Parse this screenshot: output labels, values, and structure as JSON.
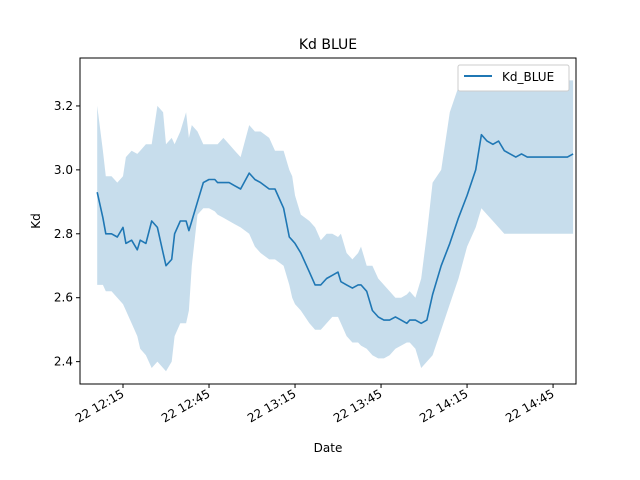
{
  "chart_data": {
    "type": "line",
    "title": "Kd BLUE",
    "xlabel": "Date",
    "ylabel": "Kd",
    "ylim": [
      2.33,
      3.35
    ],
    "xlim": [
      "2022-01-22 12:00",
      "2022-01-22 14:53"
    ],
    "x_ticks": [
      {
        "x": "2022-01-22 12:15",
        "label": "22 12:15"
      },
      {
        "x": "2022-01-22 12:45",
        "label": "22 12:45"
      },
      {
        "x": "2022-01-22 13:15",
        "label": "22 13:15"
      },
      {
        "x": "2022-01-22 13:45",
        "label": "22 13:45"
      },
      {
        "x": "2022-01-22 14:15",
        "label": "22 14:15"
      },
      {
        "x": "2022-01-22 14:45",
        "label": "22 14:45"
      }
    ],
    "y_ticks": [
      {
        "y": 2.4,
        "label": "2.4"
      },
      {
        "y": 2.6,
        "label": "2.6"
      },
      {
        "y": 2.8,
        "label": "2.8"
      },
      {
        "y": 3.0,
        "label": "3.0"
      },
      {
        "y": 3.2,
        "label": "3.2"
      }
    ],
    "legend": {
      "position": "top-right",
      "entries": [
        "Kd_BLUE"
      ]
    },
    "grid": false,
    "colors": {
      "line": "#1f77b4",
      "band": "#1f77b4"
    },
    "series": [
      {
        "name": "Kd_BLUE",
        "x": [
          "2022-01-22 12:06",
          "2022-01-22 12:08",
          "2022-01-22 12:09",
          "2022-01-22 12:11",
          "2022-01-22 12:13",
          "2022-01-22 12:15",
          "2022-01-22 12:16",
          "2022-01-22 12:18",
          "2022-01-22 12:20",
          "2022-01-22 12:21",
          "2022-01-22 12:23",
          "2022-01-22 12:25",
          "2022-01-22 12:27",
          "2022-01-22 12:29",
          "2022-01-22 12:30",
          "2022-01-22 12:32",
          "2022-01-22 12:33",
          "2022-01-22 12:35",
          "2022-01-22 12:37",
          "2022-01-22 12:38",
          "2022-01-22 12:39",
          "2022-01-22 12:41",
          "2022-01-22 12:43",
          "2022-01-22 12:45",
          "2022-01-22 12:47",
          "2022-01-22 12:48",
          "2022-01-22 12:50",
          "2022-01-22 12:52",
          "2022-01-22 12:54",
          "2022-01-22 12:56",
          "2022-01-22 12:59",
          "2022-01-22 13:01",
          "2022-01-22 13:03",
          "2022-01-22 13:06",
          "2022-01-22 13:08",
          "2022-01-22 13:11",
          "2022-01-22 13:13",
          "2022-01-22 13:14",
          "2022-01-22 13:15",
          "2022-01-22 13:17",
          "2022-01-22 13:20",
          "2022-01-22 13:22",
          "2022-01-22 13:24",
          "2022-01-22 13:26",
          "2022-01-22 13:28",
          "2022-01-22 13:30",
          "2022-01-22 13:31",
          "2022-01-22 13:33",
          "2022-01-22 13:35",
          "2022-01-22 13:37",
          "2022-01-22 13:38",
          "2022-01-22 13:40",
          "2022-01-22 13:42",
          "2022-01-22 13:44",
          "2022-01-22 13:46",
          "2022-01-22 13:48",
          "2022-01-22 13:50",
          "2022-01-22 13:52",
          "2022-01-22 13:54",
          "2022-01-22 13:55",
          "2022-01-22 13:57",
          "2022-01-22 13:59",
          "2022-01-22 14:01",
          "2022-01-22 14:03",
          "2022-01-22 14:06",
          "2022-01-22 14:09",
          "2022-01-22 14:12",
          "2022-01-22 14:15",
          "2022-01-22 14:18",
          "2022-01-22 14:20",
          "2022-01-22 14:22",
          "2022-01-22 14:24",
          "2022-01-22 14:26",
          "2022-01-22 14:28",
          "2022-01-22 14:30",
          "2022-01-22 14:32",
          "2022-01-22 14:34",
          "2022-01-22 14:36",
          "2022-01-22 14:38",
          "2022-01-22 14:40",
          "2022-01-22 14:42",
          "2022-01-22 14:43",
          "2022-01-22 14:45",
          "2022-01-22 14:46",
          "2022-01-22 14:48",
          "2022-01-22 14:50",
          "2022-01-22 14:52"
        ],
        "y": [
          2.93,
          2.85,
          2.8,
          2.8,
          2.79,
          2.82,
          2.77,
          2.78,
          2.75,
          2.78,
          2.77,
          2.84,
          2.82,
          2.74,
          2.7,
          2.72,
          2.8,
          2.84,
          2.84,
          2.81,
          2.84,
          2.9,
          2.96,
          2.97,
          2.97,
          2.96,
          2.96,
          2.96,
          2.95,
          2.94,
          2.99,
          2.97,
          2.96,
          2.94,
          2.94,
          2.88,
          2.79,
          2.78,
          2.77,
          2.74,
          2.68,
          2.64,
          2.64,
          2.66,
          2.67,
          2.68,
          2.65,
          2.64,
          2.63,
          2.64,
          2.64,
          2.62,
          2.56,
          2.54,
          2.53,
          2.53,
          2.54,
          2.53,
          2.52,
          2.53,
          2.53,
          2.52,
          2.53,
          2.61,
          2.7,
          2.77,
          2.85,
          2.92,
          3.0,
          3.11,
          3.09,
          3.08,
          3.09,
          3.06,
          3.05,
          3.04,
          3.05,
          3.04,
          3.04,
          3.04,
          3.04,
          3.04,
          3.04,
          3.04,
          3.04,
          3.04,
          3.05
        ],
        "y_lower": [
          2.64,
          2.64,
          2.62,
          2.62,
          2.6,
          2.58,
          2.56,
          2.52,
          2.48,
          2.44,
          2.42,
          2.38,
          2.4,
          2.38,
          2.37,
          2.4,
          2.48,
          2.52,
          2.52,
          2.56,
          2.7,
          2.86,
          2.88,
          2.88,
          2.87,
          2.86,
          2.85,
          2.84,
          2.83,
          2.82,
          2.8,
          2.76,
          2.74,
          2.72,
          2.72,
          2.7,
          2.64,
          2.6,
          2.58,
          2.56,
          2.52,
          2.5,
          2.5,
          2.52,
          2.54,
          2.54,
          2.52,
          2.48,
          2.46,
          2.46,
          2.45,
          2.44,
          2.42,
          2.41,
          2.41,
          2.42,
          2.44,
          2.45,
          2.46,
          2.46,
          2.44,
          2.38,
          2.4,
          2.42,
          2.5,
          2.58,
          2.66,
          2.76,
          2.82,
          2.88,
          2.86,
          2.84,
          2.82,
          2.8,
          2.8,
          2.8,
          2.8,
          2.8,
          2.8,
          2.8,
          2.8,
          2.8,
          2.8,
          2.8,
          2.8,
          2.8,
          2.8
        ],
        "y_upper": [
          3.2,
          3.06,
          2.98,
          2.98,
          2.96,
          2.98,
          3.04,
          3.06,
          3.05,
          3.06,
          3.08,
          3.08,
          3.2,
          3.18,
          3.08,
          3.1,
          3.08,
          3.12,
          3.18,
          3.1,
          3.14,
          3.12,
          3.08,
          3.08,
          3.08,
          3.08,
          3.1,
          3.08,
          3.06,
          3.04,
          3.14,
          3.12,
          3.12,
          3.1,
          3.06,
          3.06,
          3.0,
          2.98,
          2.92,
          2.86,
          2.84,
          2.82,
          2.78,
          2.8,
          2.8,
          2.79,
          2.8,
          2.74,
          2.72,
          2.74,
          2.76,
          2.7,
          2.7,
          2.66,
          2.64,
          2.62,
          2.6,
          2.6,
          2.61,
          2.62,
          2.6,
          2.66,
          2.8,
          2.96,
          3.0,
          3.18,
          3.26,
          3.3,
          3.32,
          3.3,
          3.28,
          3.28,
          3.28,
          3.28,
          3.28,
          3.28,
          3.28,
          3.28,
          3.28,
          3.28,
          3.28,
          3.28,
          3.28,
          3.28,
          3.28,
          3.28,
          3.28
        ]
      }
    ]
  }
}
